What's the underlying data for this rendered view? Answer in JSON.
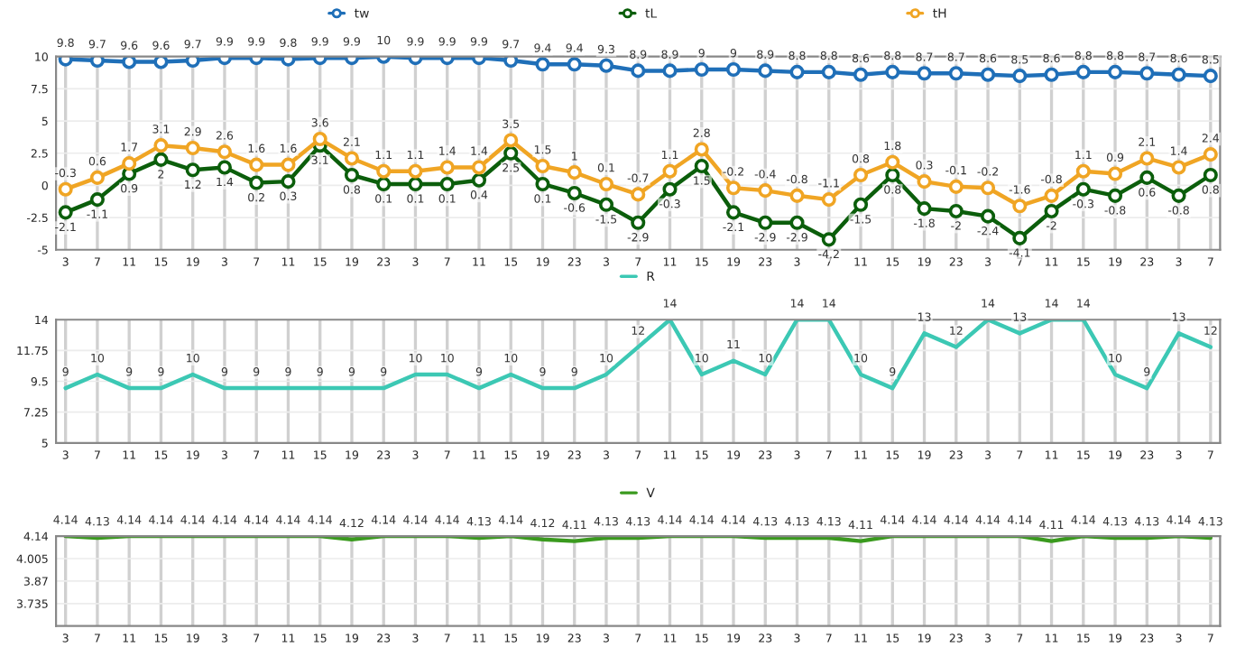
{
  "chart_data": [
    {
      "type": "line",
      "categories": [
        "3",
        "7",
        "11",
        "15",
        "19",
        "3",
        "7",
        "11",
        "15",
        "19",
        "23",
        "3",
        "7",
        "11",
        "15",
        "19",
        "23",
        "3",
        "7",
        "11",
        "15",
        "19",
        "23",
        "3",
        "7",
        "11",
        "15",
        "19",
        "23",
        "3",
        "7",
        "11",
        "15",
        "19",
        "23",
        "3",
        "7"
      ],
      "series": [
        {
          "name": "tw",
          "color": "#1f6fb8",
          "values": [
            9.8,
            9.7,
            9.6,
            9.6,
            9.7,
            9.9,
            9.9,
            9.8,
            9.9,
            9.9,
            10,
            9.9,
            9.9,
            9.9,
            9.7,
            9.4,
            9.4,
            9.3,
            8.9,
            8.9,
            9,
            9,
            8.9,
            8.8,
            8.8,
            8.6,
            8.8,
            8.7,
            8.7,
            8.6,
            8.5,
            8.6,
            8.8,
            8.8,
            8.7,
            8.6,
            8.5
          ]
        },
        {
          "name": "tL",
          "color": "#0b5e0b",
          "values": [
            -2.1,
            -1.1,
            0.9,
            2,
            1.2,
            1.4,
            0.2,
            0.3,
            3.1,
            0.8,
            0.1,
            0.1,
            0.1,
            0.4,
            2.5,
            0.1,
            -0.6,
            -1.5,
            -2.9,
            -0.3,
            1.5,
            -2.1,
            -2.9,
            -2.9,
            -4.2,
            -1.5,
            0.8,
            -1.8,
            -2,
            -2.4,
            -4.1,
            -2,
            -0.3,
            -0.8,
            0.6,
            -0.8,
            0.8
          ]
        },
        {
          "name": "tH",
          "color": "#f0a524",
          "values": [
            -0.3,
            0.6,
            1.7,
            3.1,
            2.9,
            2.6,
            1.6,
            1.6,
            3.6,
            2.1,
            1.1,
            1.1,
            1.4,
            1.4,
            3.5,
            1.5,
            1,
            0.1,
            -0.7,
            1.1,
            2.8,
            -0.2,
            -0.4,
            -0.8,
            -1.1,
            0.8,
            1.8,
            0.3,
            -0.1,
            -0.2,
            -1.6,
            -0.8,
            1.1,
            0.9,
            2.1,
            1.4,
            2.4
          ]
        }
      ],
      "ylim": [
        -5,
        10
      ],
      "yticks": [
        -5,
        -2.5,
        0,
        2.5,
        5,
        7.5,
        10
      ],
      "grid": true,
      "legend": "top",
      "marker": "circle",
      "data_labels": true
    },
    {
      "type": "line",
      "categories": [
        "3",
        "7",
        "11",
        "15",
        "19",
        "3",
        "7",
        "11",
        "15",
        "19",
        "23",
        "3",
        "7",
        "11",
        "15",
        "19",
        "23",
        "3",
        "7",
        "11",
        "15",
        "19",
        "23",
        "3",
        "7",
        "11",
        "15",
        "19",
        "23",
        "3",
        "7",
        "11",
        "15",
        "19",
        "23",
        "3",
        "7"
      ],
      "series": [
        {
          "name": "R",
          "color": "#3cc8b4",
          "values": [
            9,
            10,
            9,
            9,
            10,
            9,
            9,
            9,
            9,
            9,
            9,
            10,
            10,
            9,
            10,
            9,
            9,
            10,
            12,
            14,
            10,
            11,
            10,
            14,
            14,
            10,
            9,
            13,
            12,
            14,
            13,
            14,
            14,
            10,
            9,
            13,
            12
          ]
        }
      ],
      "ylim": [
        5,
        14
      ],
      "yticks": [
        5,
        7.25,
        9.5,
        11.75,
        14
      ],
      "grid": true,
      "legend": "top",
      "marker": "none",
      "data_labels": true
    },
    {
      "type": "line",
      "categories": [
        "3",
        "7",
        "11",
        "15",
        "19",
        "3",
        "7",
        "11",
        "15",
        "19",
        "23",
        "3",
        "7",
        "11",
        "15",
        "19",
        "23",
        "3",
        "7",
        "11",
        "15",
        "19",
        "23",
        "3",
        "7",
        "11",
        "15",
        "19",
        "23",
        "3",
        "7",
        "11",
        "15",
        "19",
        "23",
        "3",
        "7"
      ],
      "series": [
        {
          "name": "V",
          "color": "#3a9a1e",
          "values": [
            4.14,
            4.13,
            4.14,
            4.14,
            4.14,
            4.14,
            4.14,
            4.14,
            4.14,
            4.12,
            4.14,
            4.14,
            4.14,
            4.13,
            4.14,
            4.12,
            4.11,
            4.13,
            4.13,
            4.14,
            4.14,
            4.14,
            4.13,
            4.13,
            4.13,
            4.11,
            4.14,
            4.14,
            4.14,
            4.14,
            4.14,
            4.11,
            4.14,
            4.13,
            4.13,
            4.14,
            4.13
          ]
        }
      ],
      "ylim": [
        3.6,
        4.14
      ],
      "yticks": [
        3.735,
        3.87,
        4.005,
        4.14
      ],
      "grid": true,
      "legend": "top",
      "marker": "none",
      "data_labels": true
    }
  ]
}
